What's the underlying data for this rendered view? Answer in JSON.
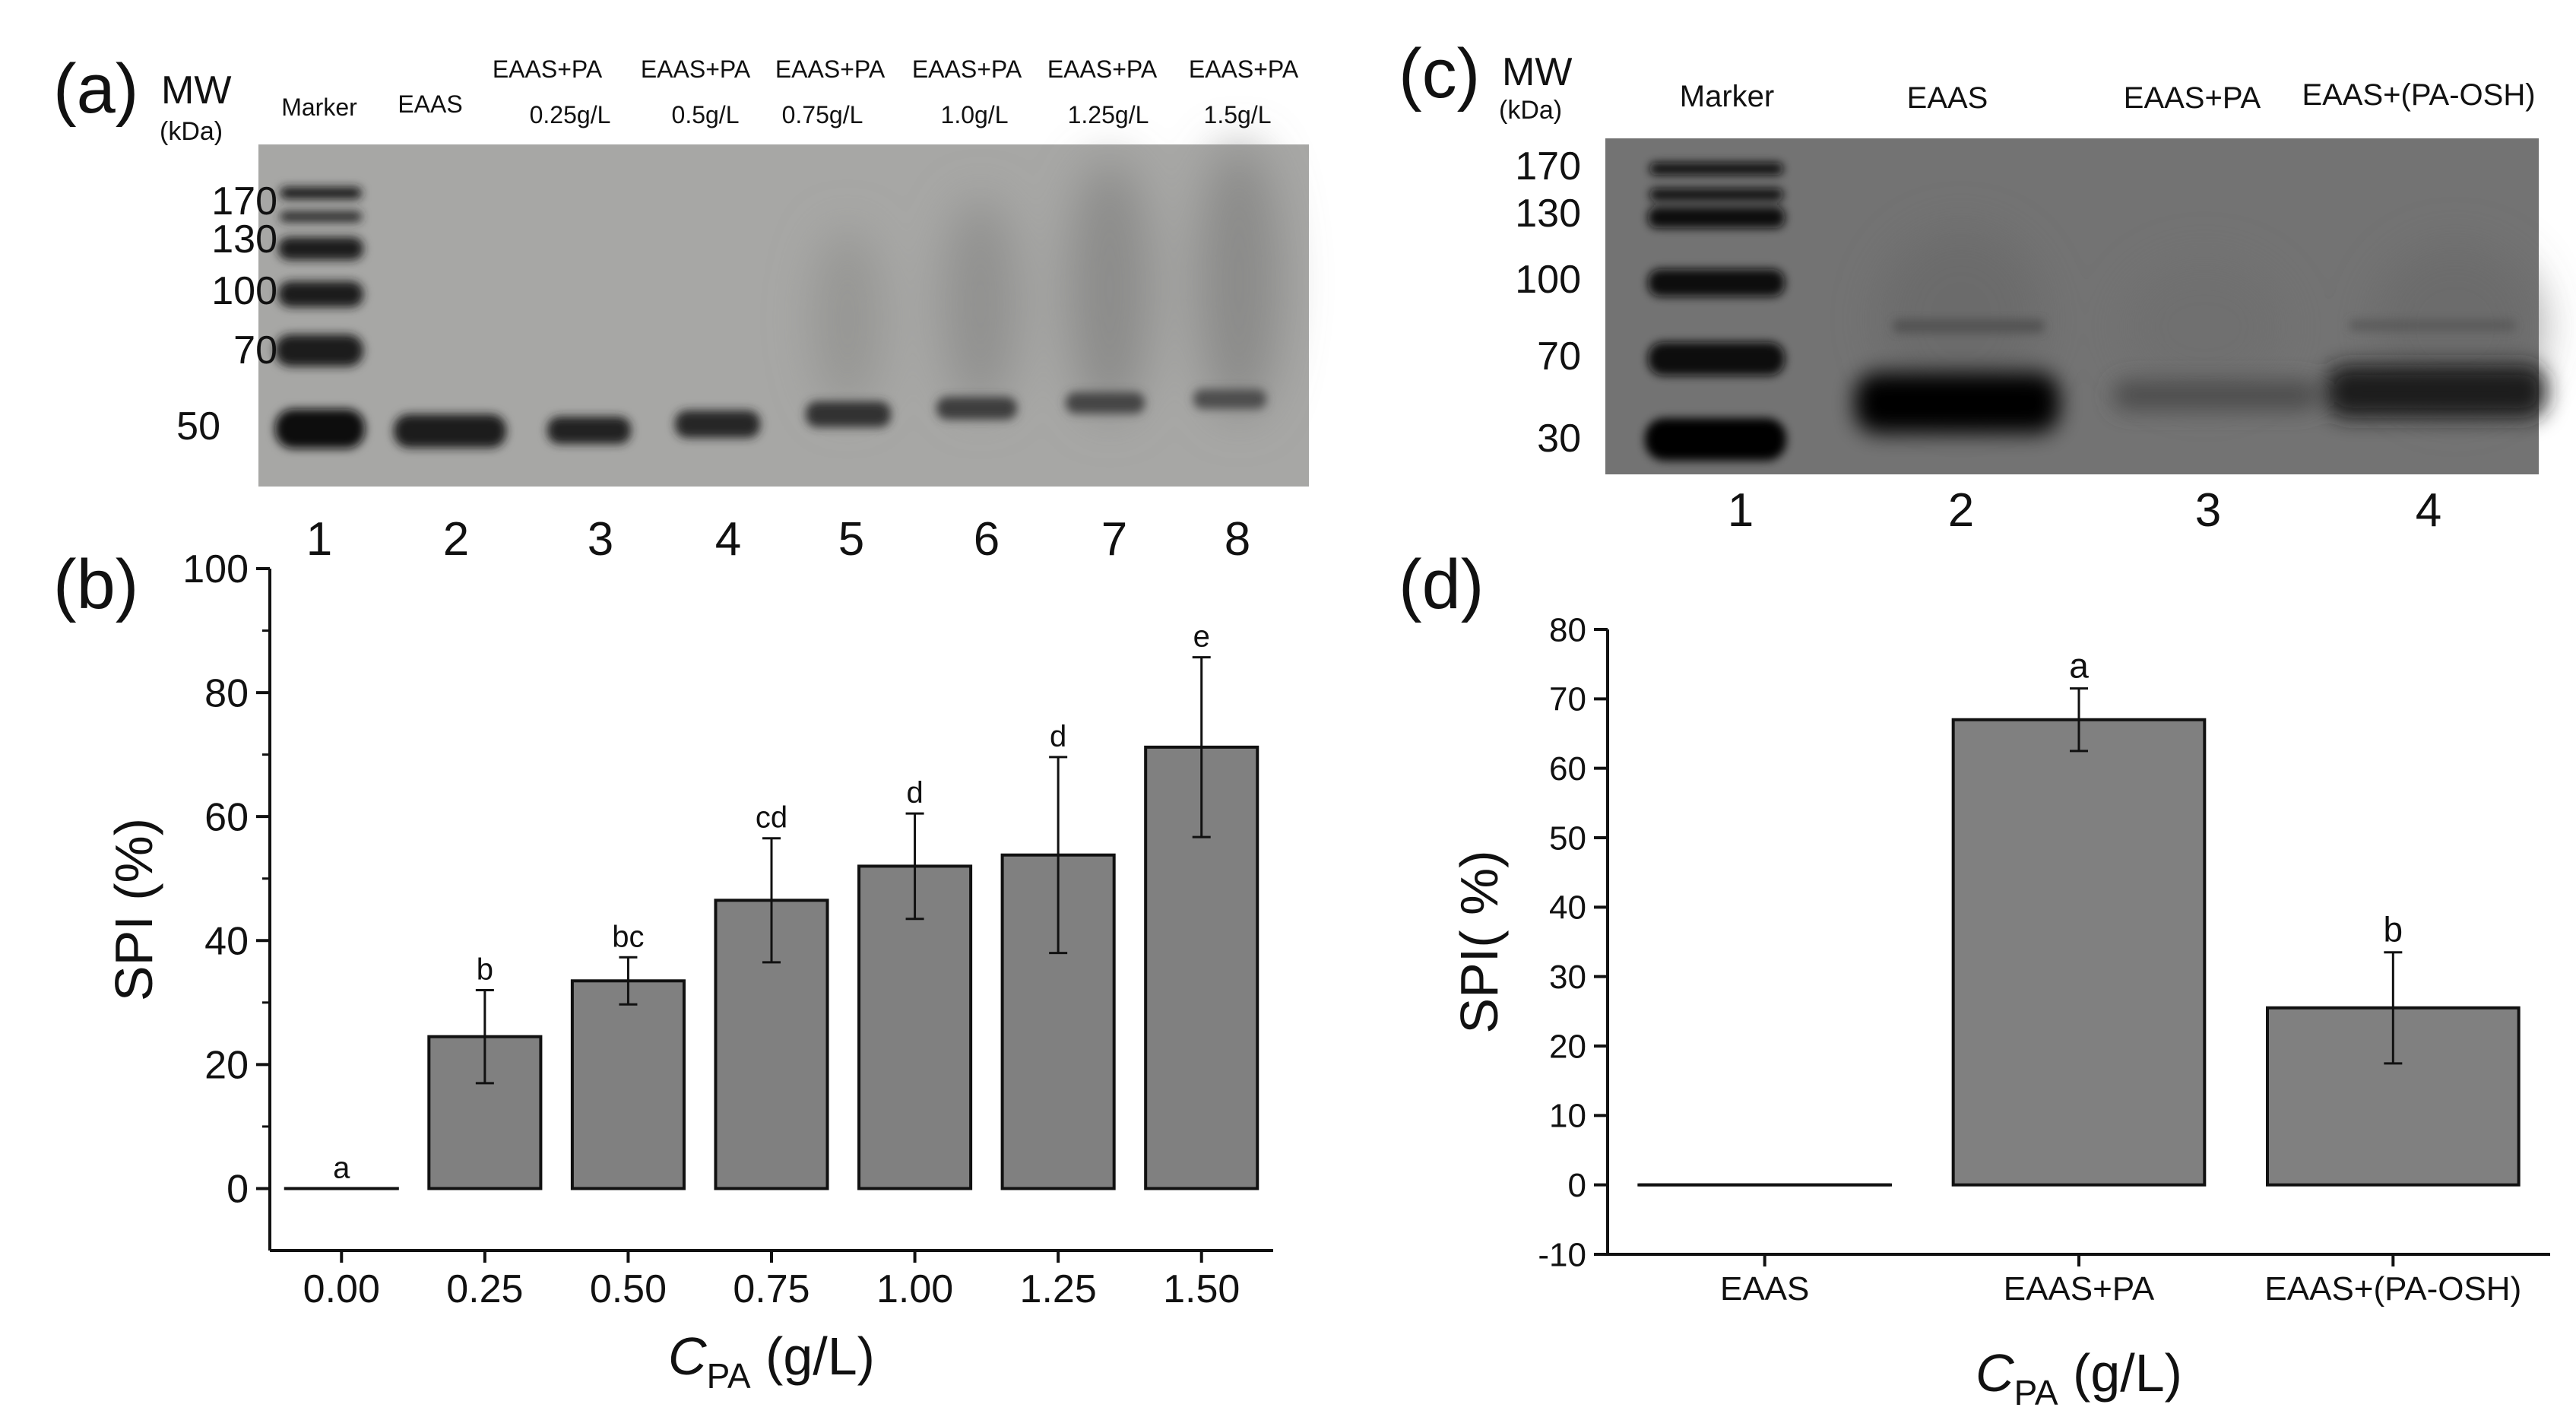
{
  "panels": {
    "a": {
      "label": "(a)",
      "mw_label": "MW",
      "mw_unit": "(kDa)",
      "marker_ticks": [
        "170",
        "130",
        "100",
        "70",
        "50"
      ],
      "lane_headers": [
        {
          "line1": "Marker",
          "line2": ""
        },
        {
          "line1": "EAAS",
          "line2": ""
        },
        {
          "line1": "EAAS+PA",
          "line2": "0.25g/L"
        },
        {
          "line1": "EAAS+PA",
          "line2": "0.5g/L"
        },
        {
          "line1": "EAAS+PA",
          "line2": "0.75g/L"
        },
        {
          "line1": "EAAS+PA",
          "line2": "1.0g/L"
        },
        {
          "line1": "EAAS+PA",
          "line2": "1.25g/L"
        },
        {
          "line1": "EAAS+PA",
          "line2": "1.5g/L"
        }
      ],
      "lane_numbers": [
        "1",
        "2",
        "3",
        "4",
        "5",
        "6",
        "7",
        "8"
      ]
    },
    "c": {
      "label": "(c)",
      "mw_label": "MW",
      "mw_unit": "(kDa)",
      "marker_ticks": [
        "170",
        "130",
        "100",
        "70",
        "30"
      ],
      "lane_headers": [
        "Marker",
        "EAAS",
        "EAAS+PA",
        "EAAS+(PA-OSH)"
      ],
      "lane_numbers": [
        "1",
        "2",
        "3",
        "4"
      ]
    }
  },
  "chart_data": [
    {
      "panel": "(b)",
      "type": "bar",
      "categories": [
        "0.00",
        "0.25",
        "0.50",
        "0.75",
        "1.00",
        "1.25",
        "1.50"
      ],
      "values": [
        0,
        24.5,
        33.5,
        46.5,
        52,
        53.8,
        71.2
      ],
      "errors": [
        0,
        7.5,
        3.8,
        10,
        8.5,
        15.8,
        14.5
      ],
      "significance": [
        "a",
        "b",
        "bc",
        "cd",
        "d",
        "d",
        "e"
      ],
      "ylabel": "SPI (%)",
      "xlabel_main": "C",
      "xlabel_sub": "PA",
      "xlabel_unit": " (g/L)",
      "ylim": [
        -10,
        100
      ],
      "yticks": [
        0,
        20,
        40,
        60,
        80,
        100
      ],
      "bar_color": "#808080",
      "grid": false,
      "legend": "none"
    },
    {
      "panel": "(d)",
      "type": "bar",
      "categories": [
        "EAAS",
        "EAAS+PA",
        "EAAS+(PA-OSH)"
      ],
      "values": [
        0,
        67,
        25.5
      ],
      "errors": [
        0,
        4.5,
        8
      ],
      "significance": [
        "",
        "a",
        "b"
      ],
      "ylabel": "SPI( %)",
      "xlabel_main": "C",
      "xlabel_sub": "PA",
      "xlabel_unit": " (g/L)",
      "ylim": [
        -10,
        80
      ],
      "yticks": [
        -10,
        0,
        10,
        20,
        30,
        40,
        50,
        60,
        70,
        80
      ],
      "bar_color": "#808080",
      "grid": false,
      "legend": "none"
    }
  ]
}
